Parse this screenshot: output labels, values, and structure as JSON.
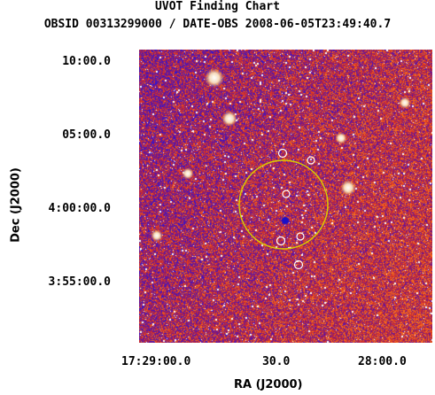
{
  "chart": {
    "title": "UVOT Finding Chart",
    "subtitle": "OBSID 00313299000 / DATE-OBS 2008-06-05T23:49:40.7"
  },
  "axes": {
    "ra_label": "RA (J2000)",
    "dec_label": "Dec (J2000)",
    "ra_ticks": [
      "17:29:00.0",
      "30.0",
      "28:00.0"
    ],
    "dec_ticks": [
      "10:00.0",
      "05:00.0",
      "4:00:00.0",
      "3:55:00.0"
    ]
  },
  "colors": {
    "background_low": "#2a14d8",
    "background_mid": "#8a1a6f",
    "background_high": "#e23b1f",
    "star": "#ffffff",
    "error_circle": "#d8d000",
    "marker_circle": "#ffffff"
  },
  "overlays": {
    "error_circle": "large yellow circle marking the target position",
    "source_markers": "small white circles around catalogued sources"
  }
}
